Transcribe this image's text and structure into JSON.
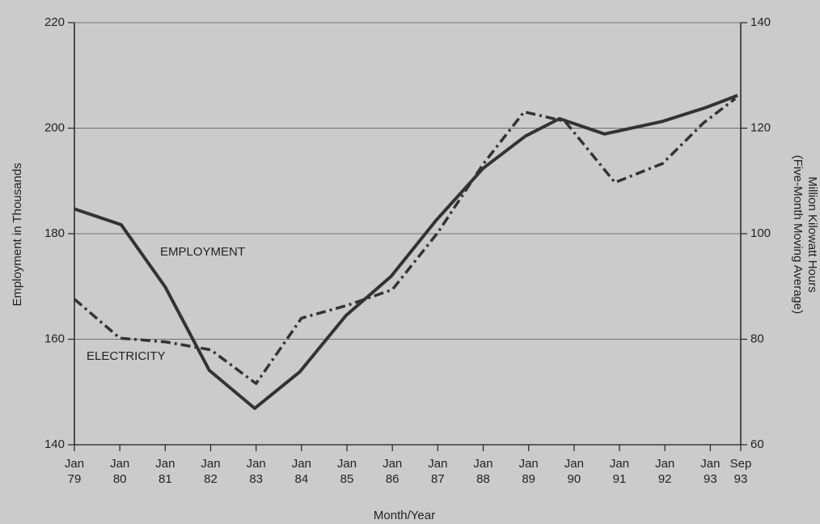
{
  "chart_data": {
    "type": "line",
    "xlabel": "Month/Year",
    "ylabel": "Employment in Thousands",
    "y2label": [
      "Million Kilowatt Hours",
      "(Five-Month Moving Average)"
    ],
    "xlim": [
      1979,
      1993.67
    ],
    "xticks": [
      {
        "value": 1979,
        "label": "Jan 79"
      },
      {
        "value": 1980,
        "label": "Jan 80"
      },
      {
        "value": 1981,
        "label": "Jan 81"
      },
      {
        "value": 1982,
        "label": "Jan 82"
      },
      {
        "value": 1983,
        "label": "Jan 83"
      },
      {
        "value": 1984,
        "label": "Jan 84"
      },
      {
        "value": 1985,
        "label": "Jan 85"
      },
      {
        "value": 1986,
        "label": "Jan 86"
      },
      {
        "value": 1987,
        "label": "Jan 87"
      },
      {
        "value": 1988,
        "label": "Jan 88"
      },
      {
        "value": 1989,
        "label": "Jan 89"
      },
      {
        "value": 1990,
        "label": "Jan 90"
      },
      {
        "value": 1991,
        "label": "Jan 91"
      },
      {
        "value": 1992,
        "label": "Jan 92"
      },
      {
        "value": 1993,
        "label": "Jan 93"
      },
      {
        "value": 1993.67,
        "label": "Sep 93"
      }
    ],
    "ylim": [
      140,
      220
    ],
    "yticks": [
      140,
      160,
      180,
      200,
      220
    ],
    "y2lim": [
      60,
      140
    ],
    "y2ticks": [
      60,
      80,
      100,
      120,
      140
    ],
    "grid": true,
    "series": [
      {
        "name": "EMPLOYMENT",
        "color": "#333333",
        "style": "solid",
        "x": [
          1979,
          1980.03,
          1981,
          1981.97,
          1982.97,
          1983.96,
          1984.98,
          1985.97,
          1986.97,
          1988,
          1988.93,
          1989.68,
          1990.67,
          1991.95,
          1992.9,
          1993.6
        ],
        "values": [
          184.7,
          181.7,
          169.9,
          154.1,
          146.9,
          153.8,
          164.5,
          171.9,
          182.6,
          192.4,
          198.5,
          201.8,
          198.9,
          201.3,
          203.9,
          206.2
        ]
      },
      {
        "name": "ELECTRICITY",
        "color": "#333333",
        "style": "dashdot",
        "axis": "y2",
        "x": [
          1979,
          1980,
          1981,
          1982,
          1983,
          1984,
          1985,
          1986,
          1987,
          1988,
          1988.9,
          1989.8,
          1990.9,
          1991.95,
          1992.85,
          1993.55
        ],
        "values": [
          87.6,
          80.2,
          79.5,
          78,
          71.6,
          84,
          86.4,
          89.4,
          100.2,
          113.2,
          123.1,
          121.3,
          109.7,
          113.3,
          121,
          125.6
        ]
      }
    ]
  }
}
